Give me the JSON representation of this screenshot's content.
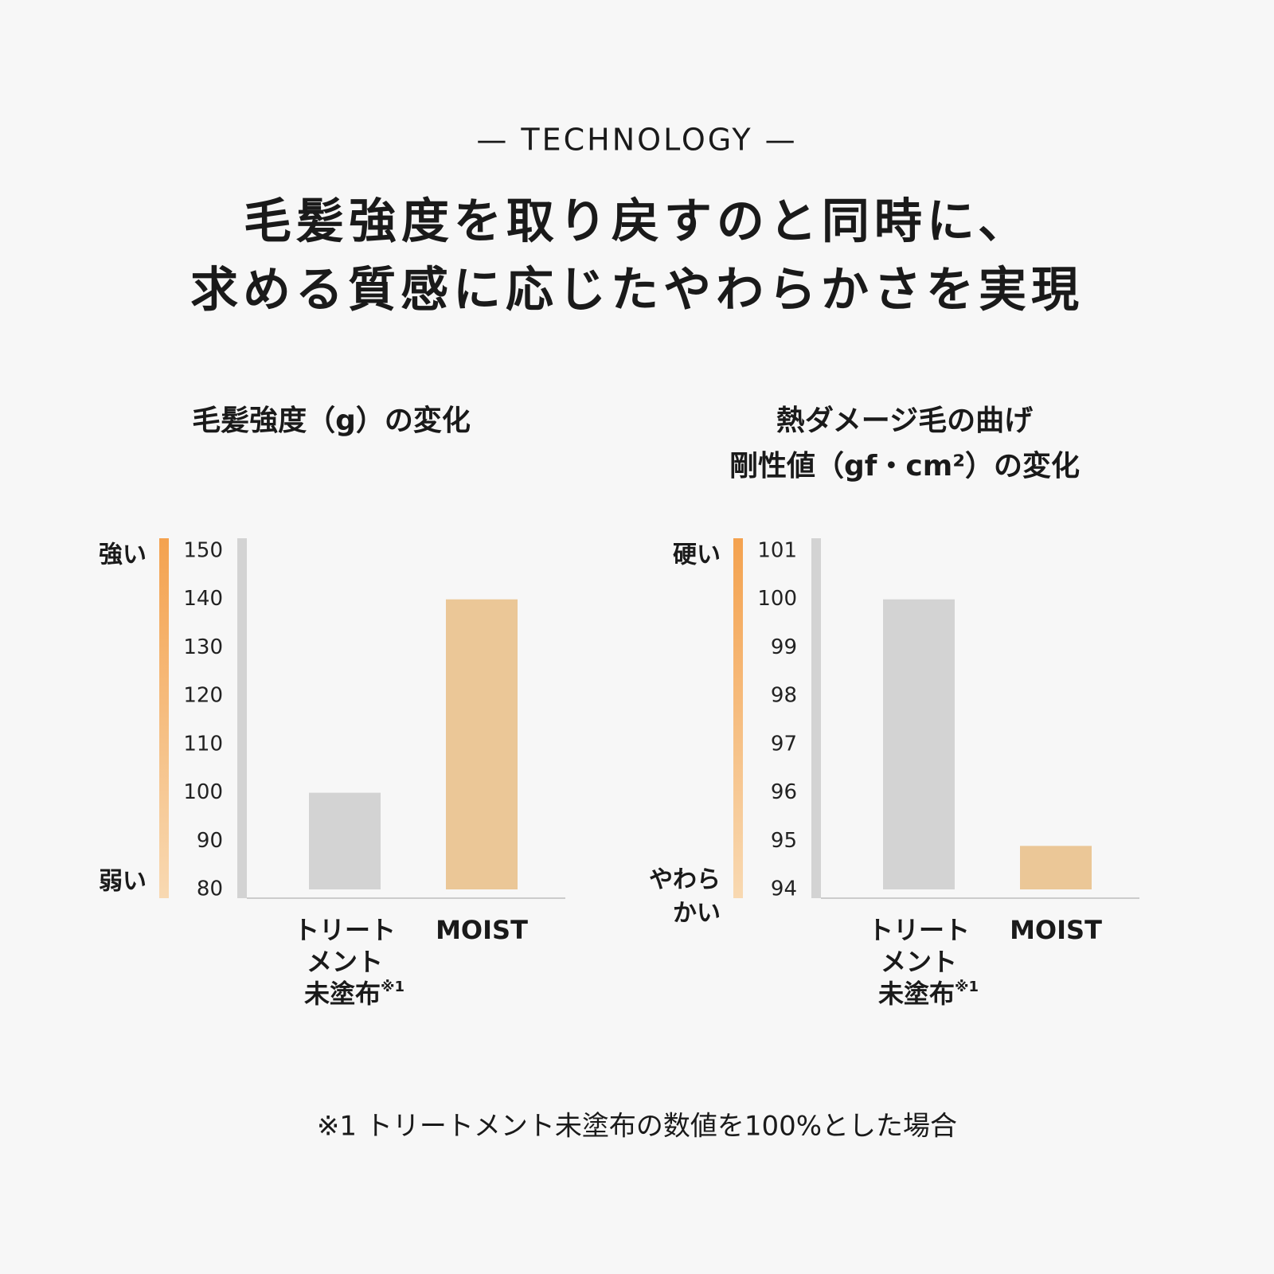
{
  "header": {
    "eyebrow": "— TECHNOLOGY —",
    "title_lines": [
      "毛髪強度を取り戻すのと同時に、",
      "求める質感に応じたやわらかさを実現"
    ]
  },
  "chart_data": [
    {
      "type": "bar",
      "title_lines": [
        "毛髪強度（g）の変化"
      ],
      "axis_high": [
        "強い"
      ],
      "axis_low": [
        "弱い"
      ],
      "categories": [
        [
          "トリート",
          "メント",
          "未塗布"
        ],
        [
          "MOIST"
        ]
      ],
      "category_notes": [
        "※1",
        null
      ],
      "values": [
        100,
        140
      ],
      "colors": [
        "#d3d3d3",
        "#ebc797"
      ],
      "ylim": [
        80,
        150
      ],
      "yticks": [
        80,
        90,
        100,
        110,
        120,
        130,
        140,
        150
      ]
    },
    {
      "type": "bar",
      "title_lines": [
        "熱ダメージ毛の曲げ",
        "剛性値（gf・cm²）の変化"
      ],
      "axis_high": [
        "硬い"
      ],
      "axis_low": [
        "やわら",
        "かい"
      ],
      "categories": [
        [
          "トリート",
          "メント",
          "未塗布"
        ],
        [
          "MOIST"
        ]
      ],
      "category_notes": [
        "※1",
        null
      ],
      "values": [
        100,
        94.9
      ],
      "colors": [
        "#d3d3d3",
        "#ebc797"
      ],
      "ylim": [
        94,
        101
      ],
      "yticks": [
        94,
        95,
        96,
        97,
        98,
        99,
        100,
        101
      ]
    }
  ],
  "footnote": "※1 トリートメント未塗布の数値を100%とした場合"
}
